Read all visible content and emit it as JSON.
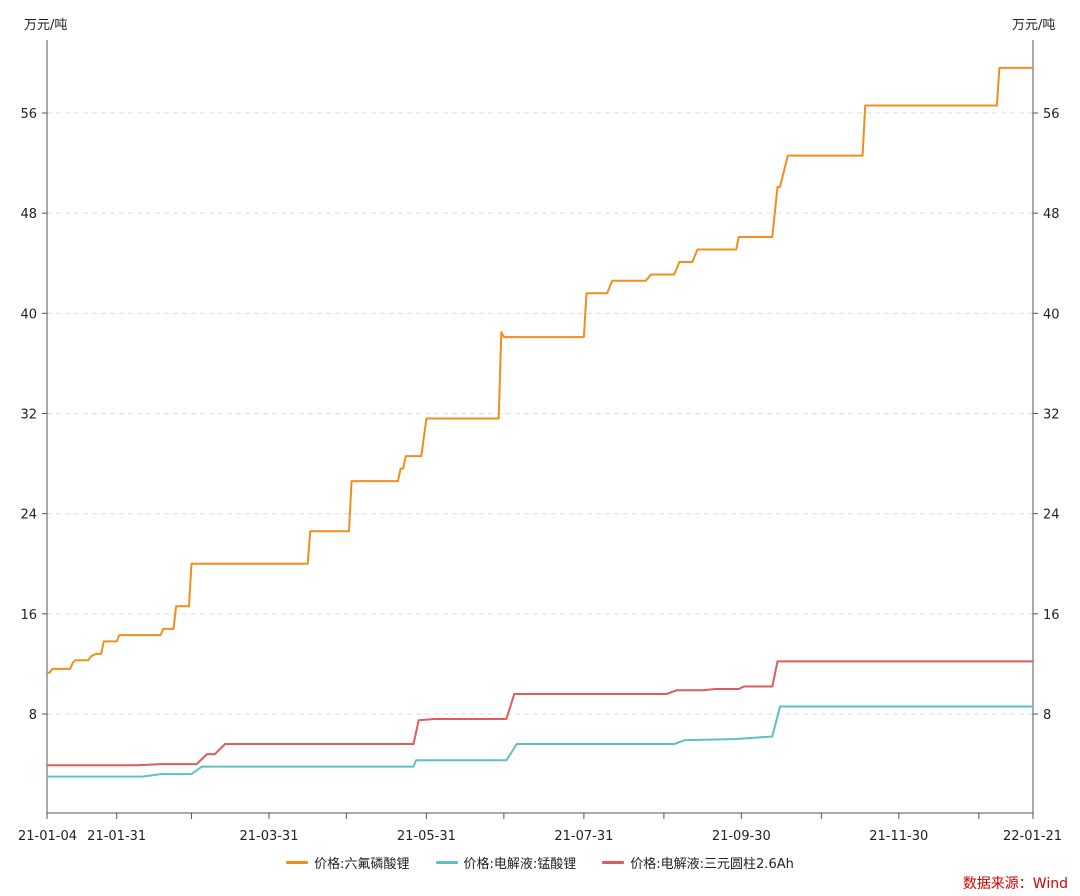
{
  "chart_data": {
    "type": "line",
    "title": "",
    "y_unit_left": "万元/吨",
    "y_unit_right": "万元/吨",
    "xlim": [
      "2021-01-04",
      "2022-01-21"
    ],
    "ylim": [
      0,
      60
    ],
    "yticks": [
      8,
      16,
      24,
      32,
      40,
      48,
      56
    ],
    "xticks": [
      "21-01-04",
      "21-01-31",
      "21-03-31",
      "21-05-31",
      "21-07-31",
      "21-09-30",
      "21-11-30",
      "22-01-21"
    ],
    "x_tick_dates": [
      "2021-01-04",
      "2021-01-31",
      "2021-03-31",
      "2021-05-31",
      "2021-07-31",
      "2021-09-30",
      "2021-11-30",
      "2022-01-21"
    ],
    "grid": "horizontal dashed",
    "legend_position": "bottom-center",
    "series": [
      {
        "name": "价格:六氟磷酸锂",
        "color": "#f28e1c",
        "points": [
          [
            "2021-01-04",
            11.3
          ],
          [
            "2021-01-05",
            11.3
          ],
          [
            "2021-01-06",
            11.6
          ],
          [
            "2021-01-13",
            11.6
          ],
          [
            "2021-01-14",
            12.1
          ],
          [
            "2021-01-15",
            12.3
          ],
          [
            "2021-01-20",
            12.3
          ],
          [
            "2021-01-21",
            12.6
          ],
          [
            "2021-01-23",
            12.8
          ],
          [
            "2021-01-25",
            12.8
          ],
          [
            "2021-01-26",
            13.8
          ],
          [
            "2021-01-31",
            13.8
          ],
          [
            "2021-02-01",
            14.3
          ],
          [
            "2021-02-17",
            14.3
          ],
          [
            "2021-02-18",
            14.8
          ],
          [
            "2021-02-22",
            14.8
          ],
          [
            "2021-02-23",
            16.6
          ],
          [
            "2021-02-28",
            16.6
          ],
          [
            "2021-03-01",
            20.0
          ],
          [
            "2021-04-15",
            20.0
          ],
          [
            "2021-04-16",
            22.6
          ],
          [
            "2021-05-01",
            22.6
          ],
          [
            "2021-05-02",
            26.6
          ],
          [
            "2021-05-20",
            26.6
          ],
          [
            "2021-05-21",
            27.6
          ],
          [
            "2021-05-22",
            27.6
          ],
          [
            "2021-05-23",
            28.6
          ],
          [
            "2021-05-29",
            28.6
          ],
          [
            "2021-05-31",
            31.6
          ],
          [
            "2021-06-28",
            31.6
          ],
          [
            "2021-06-29",
            38.5
          ],
          [
            "2021-06-30",
            38.1
          ],
          [
            "2021-07-31",
            38.1
          ],
          [
            "2021-08-01",
            41.6
          ],
          [
            "2021-08-09",
            41.6
          ],
          [
            "2021-08-11",
            42.6
          ],
          [
            "2021-08-24",
            42.6
          ],
          [
            "2021-08-26",
            43.1
          ],
          [
            "2021-09-04",
            43.1
          ],
          [
            "2021-09-06",
            44.1
          ],
          [
            "2021-09-11",
            44.1
          ],
          [
            "2021-09-13",
            45.1
          ],
          [
            "2021-09-28",
            45.1
          ],
          [
            "2021-09-29",
            46.1
          ],
          [
            "2021-10-12",
            46.1
          ],
          [
            "2021-10-14",
            50.1
          ],
          [
            "2021-10-15",
            50.1
          ],
          [
            "2021-10-18",
            52.6
          ],
          [
            "2021-11-16",
            52.6
          ],
          [
            "2021-11-17",
            56.6
          ],
          [
            "2022-01-07",
            56.6
          ],
          [
            "2022-01-08",
            59.6
          ],
          [
            "2022-01-21",
            59.6
          ]
        ]
      },
      {
        "name": "价格:电解液:锰酸锂",
        "color": "#5fc0c3",
        "points": [
          [
            "2021-01-04",
            3.0
          ],
          [
            "2021-02-10",
            3.0
          ],
          [
            "2021-02-17",
            3.2
          ],
          [
            "2021-03-01",
            3.2
          ],
          [
            "2021-03-05",
            3.8
          ],
          [
            "2021-05-26",
            3.8
          ],
          [
            "2021-05-27",
            4.3
          ],
          [
            "2021-07-01",
            4.3
          ],
          [
            "2021-07-05",
            5.6
          ],
          [
            "2021-09-04",
            5.6
          ],
          [
            "2021-09-08",
            5.9
          ],
          [
            "2021-09-28",
            6.0
          ],
          [
            "2021-10-12",
            6.2
          ],
          [
            "2021-10-15",
            8.6
          ],
          [
            "2022-01-21",
            8.6
          ]
        ]
      },
      {
        "name": "价格:电解液:三元圆柱2.6Ah",
        "color": "#e05c5c",
        "points": [
          [
            "2021-01-04",
            3.9
          ],
          [
            "2021-02-08",
            3.9
          ],
          [
            "2021-02-17",
            4.0
          ],
          [
            "2021-03-03",
            4.0
          ],
          [
            "2021-03-07",
            4.8
          ],
          [
            "2021-03-10",
            4.8
          ],
          [
            "2021-03-14",
            5.6
          ],
          [
            "2021-05-26",
            5.6
          ],
          [
            "2021-05-28",
            7.5
          ],
          [
            "2021-06-03",
            7.6
          ],
          [
            "2021-07-01",
            7.6
          ],
          [
            "2021-07-04",
            9.6
          ],
          [
            "2021-09-01",
            9.6
          ],
          [
            "2021-09-05",
            9.9
          ],
          [
            "2021-09-15",
            9.9
          ],
          [
            "2021-09-20",
            10.0
          ],
          [
            "2021-09-29",
            10.0
          ],
          [
            "2021-10-01",
            10.2
          ],
          [
            "2021-10-12",
            10.2
          ],
          [
            "2021-10-14",
            12.2
          ],
          [
            "2022-01-21",
            12.2
          ]
        ]
      }
    ]
  },
  "source_text": "数据来源：Wind"
}
